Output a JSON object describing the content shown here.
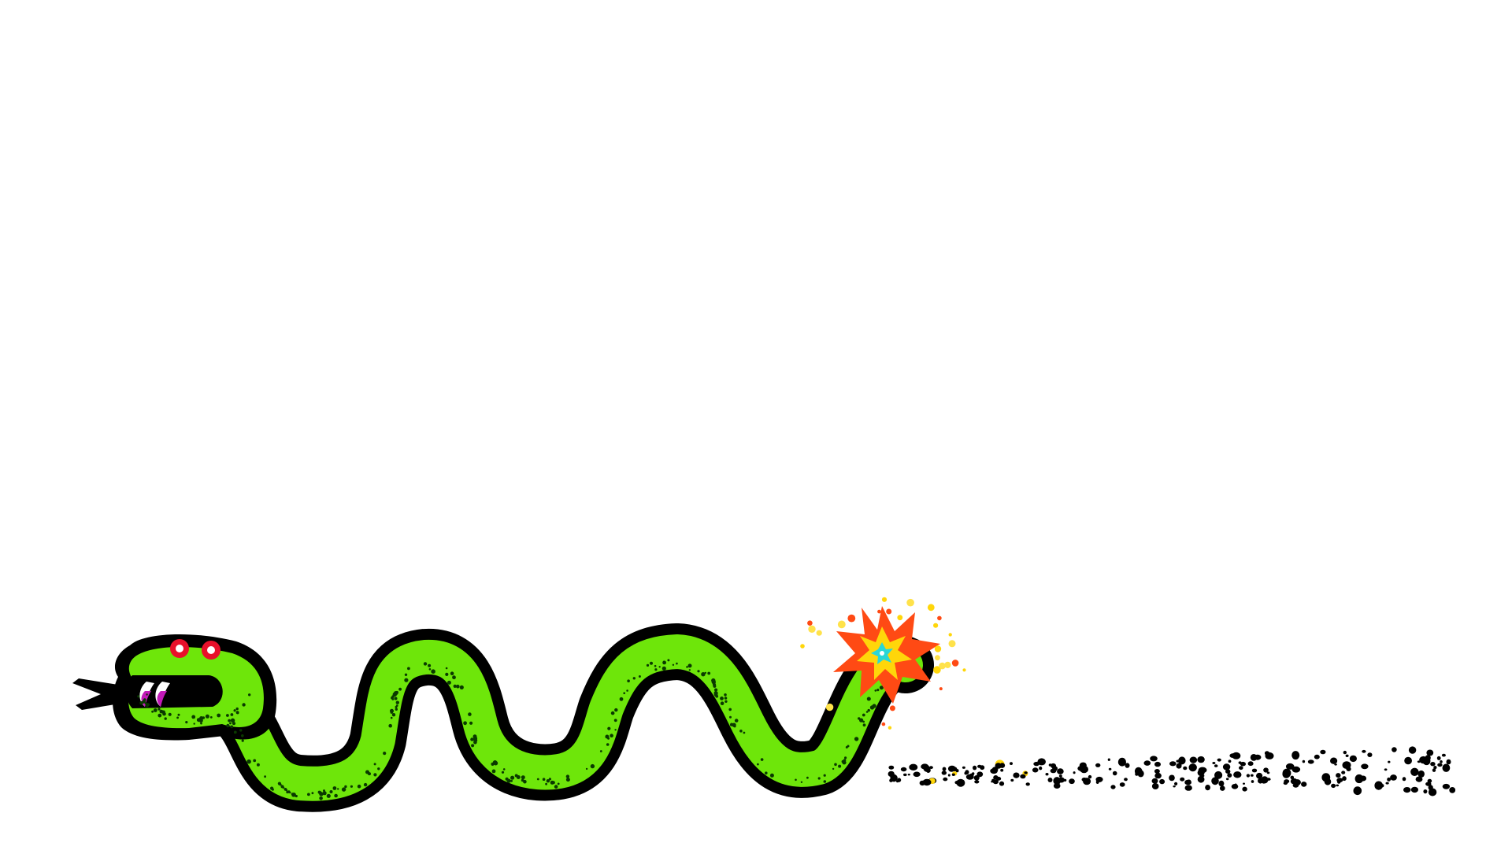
{
  "scene": {
    "description_free": true,
    "background": "#ffffff"
  },
  "snake": {
    "body_color": "#6ee60a",
    "outline_color": "#000000",
    "eye_color": "#e8102a",
    "eye_highlight": "#ffffff",
    "fang_color": "#c21ab8",
    "tongue_color": "#000000",
    "speckle_color": "#0a3a00"
  },
  "fuse_spark": {
    "outer_color": "#ff4a14",
    "middle_color": "#ffd60a",
    "core_color": "#2ad6d6",
    "particle_colors": [
      "#ffd60a",
      "#ff4a14",
      "#ffe24a"
    ]
  },
  "ash_trail": {
    "color": "#000000",
    "accent_color": "#ffd60a"
  }
}
